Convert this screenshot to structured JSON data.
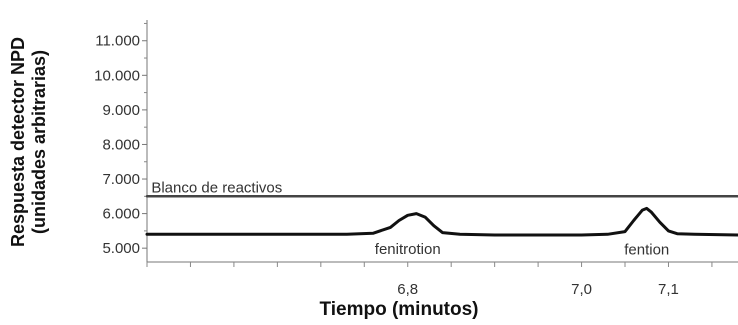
{
  "chart_data": {
    "type": "line",
    "ylabel_line1": "Respuesta detector NPD",
    "ylabel_line2": "(unidades arbitrarias)",
    "xlabel": "Tiempo  (minutos)",
    "y_ticks": [
      {
        "value": 5000,
        "label": "5.000"
      },
      {
        "value": 6000,
        "label": "6.000"
      },
      {
        "value": 7000,
        "label": "7.000"
      },
      {
        "value": 8000,
        "label": "8.000"
      },
      {
        "value": 9000,
        "label": "9.000"
      },
      {
        "value": 10000,
        "label": "10.000"
      },
      {
        "value": 11000,
        "label": "11.000"
      }
    ],
    "x_ticks": [
      {
        "value": 6.8,
        "label": "6,8"
      },
      {
        "value": 7.0,
        "label": "7,0"
      },
      {
        "value": 7.1,
        "label": "7,1"
      }
    ],
    "xlim": [
      6.5,
      7.18
    ],
    "ylim": [
      4600,
      11600
    ],
    "series": [
      {
        "name": "Blanco de reactivos",
        "color": "#444444",
        "x": [
          6.5,
          7.18
        ],
        "y": [
          6500,
          6500
        ]
      },
      {
        "color": "#111111",
        "x": [
          6.5,
          6.73,
          6.76,
          6.78,
          6.79,
          6.8,
          6.81,
          6.82,
          6.83,
          6.84,
          6.86,
          6.9,
          6.95,
          7.0,
          7.03,
          7.05,
          7.06,
          7.07,
          7.075,
          7.08,
          7.09,
          7.1,
          7.11,
          7.13,
          7.18
        ],
        "y": [
          5400,
          5400,
          5430,
          5600,
          5800,
          5950,
          6000,
          5900,
          5650,
          5450,
          5400,
          5380,
          5380,
          5380,
          5400,
          5480,
          5800,
          6100,
          6150,
          6050,
          5750,
          5500,
          5420,
          5400,
          5380
        ]
      }
    ],
    "annotations": [
      {
        "text": "Blanco de reactivos",
        "x": 6.505,
        "y": 6750
      },
      {
        "text": "fenitrotion",
        "x": 6.8,
        "y": 4980
      },
      {
        "text": "fention",
        "x": 7.075,
        "y": 4960
      }
    ],
    "grid": false,
    "legend": "none"
  }
}
